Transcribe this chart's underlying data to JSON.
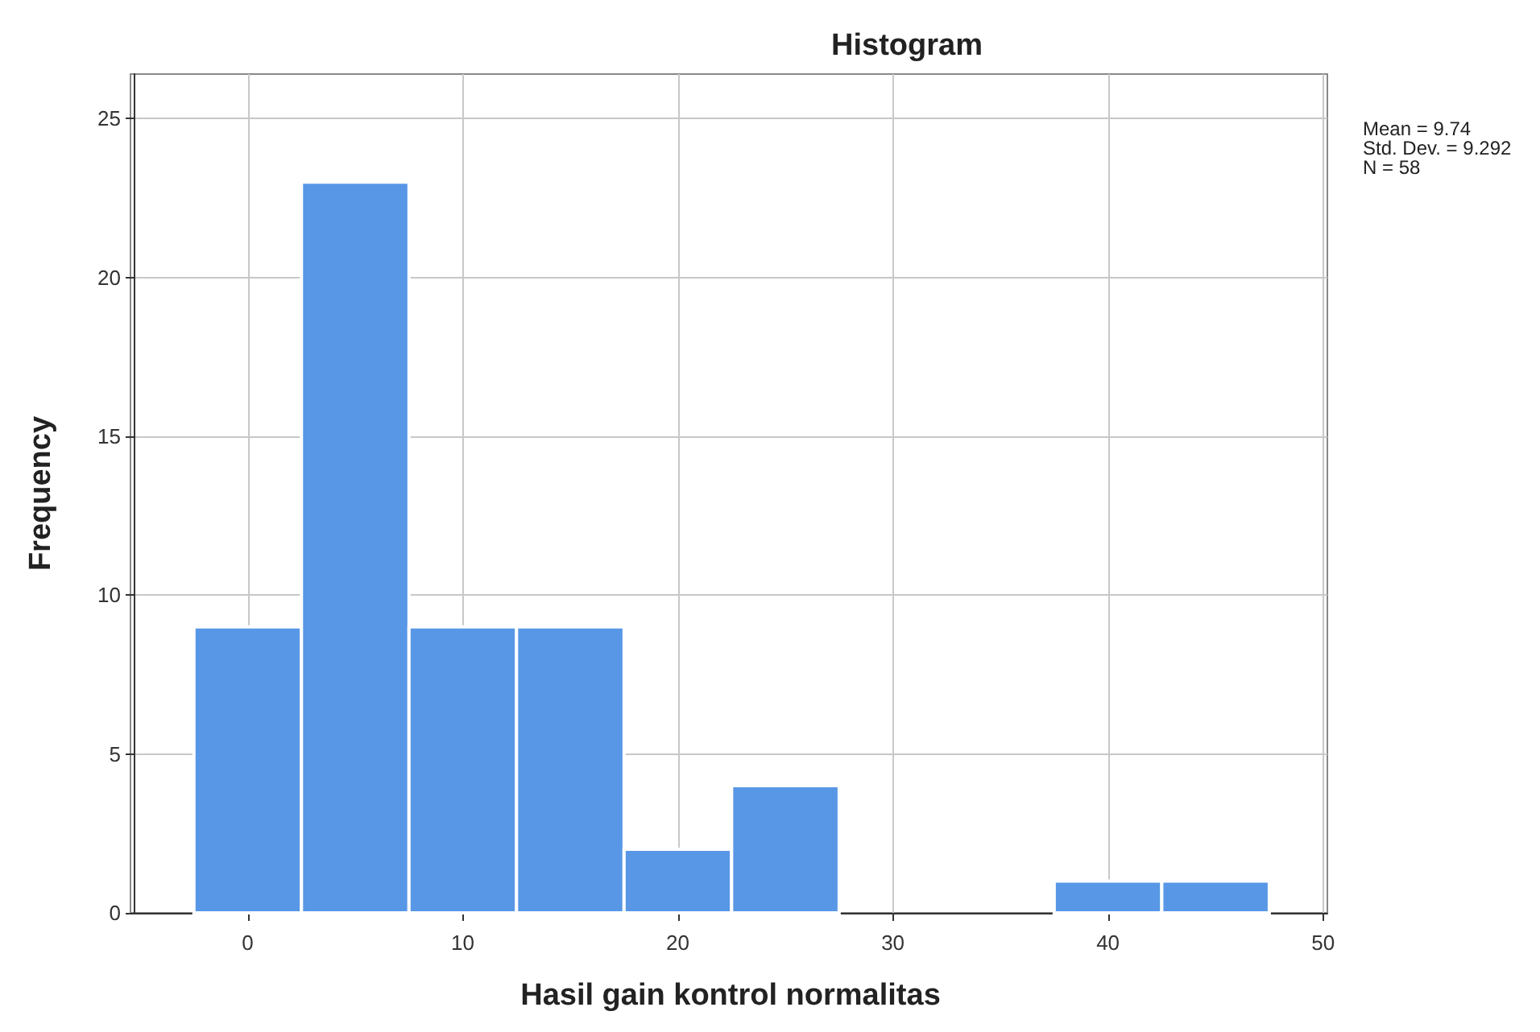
{
  "chart_data": {
    "type": "histogram",
    "title": "Histogram",
    "xlabel": "Hasil gain kontrol normalitas",
    "ylabel": "Frequency",
    "bins": [
      -2.5,
      2.5,
      7.5,
      12.5,
      17.5,
      22.5,
      27.5,
      32.5,
      37.5,
      42.5,
      47.5
    ],
    "values": [
      9,
      23,
      9,
      9,
      2,
      4,
      0,
      0,
      1,
      1
    ],
    "color": "#5797e6",
    "xlim": [
      -5.3,
      50.2
    ],
    "xticks": [
      0,
      10,
      20,
      30,
      40,
      50
    ],
    "ylim": [
      0,
      26.4
    ],
    "yticks": [
      0,
      5,
      10,
      15,
      20,
      25
    ],
    "grid": true,
    "annotations": [
      "Mean = 9.74",
      "Std. Dev. = 9.292",
      "N = 58"
    ]
  }
}
